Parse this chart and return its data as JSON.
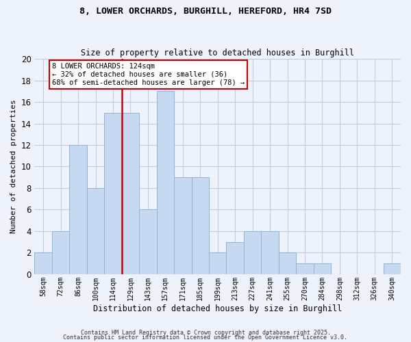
{
  "title": "8, LOWER ORCHARDS, BURGHILL, HEREFORD, HR4 7SD",
  "subtitle": "Size of property relative to detached houses in Burghill",
  "xlabel": "Distribution of detached houses by size in Burghill",
  "ylabel": "Number of detached properties",
  "bin_labels": [
    "58sqm",
    "72sqm",
    "86sqm",
    "100sqm",
    "114sqm",
    "129sqm",
    "143sqm",
    "157sqm",
    "171sqm",
    "185sqm",
    "199sqm",
    "213sqm",
    "227sqm",
    "241sqm",
    "255sqm",
    "270sqm",
    "284sqm",
    "298sqm",
    "312sqm",
    "326sqm",
    "340sqm"
  ],
  "bar_heights": [
    2,
    4,
    12,
    8,
    15,
    15,
    6,
    17,
    9,
    9,
    2,
    3,
    4,
    4,
    2,
    1,
    1,
    0,
    0,
    0,
    1
  ],
  "bar_color": "#c6d9f1",
  "bar_edge_color": "#8db4d9",
  "ylim": [
    0,
    20
  ],
  "yticks": [
    0,
    2,
    4,
    6,
    8,
    10,
    12,
    14,
    16,
    18,
    20
  ],
  "vline_x": 4.5,
  "vline_color": "#cc0000",
  "annotation_title": "8 LOWER ORCHARDS: 124sqm",
  "annotation_line1": "← 32% of detached houses are smaller (36)",
  "annotation_line2": "68% of semi-detached houses are larger (78) →",
  "annotation_box_color": "#ffffff",
  "annotation_box_edge": "#cc0000",
  "footer1": "Contains HM Land Registry data © Crown copyright and database right 2025.",
  "footer2": "Contains public sector information licensed under the Open Government Licence v3.0.",
  "background_color": "#eef2fb",
  "plot_background": "#eef2fb",
  "grid_color": "#c0cce0"
}
